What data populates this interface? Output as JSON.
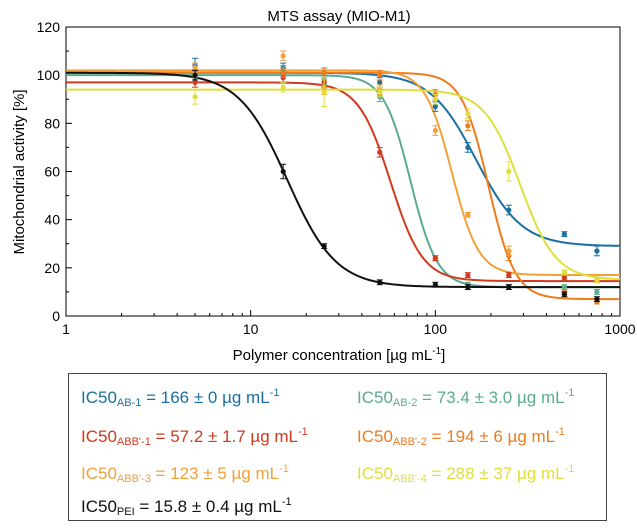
{
  "chart_data": {
    "type": "scatter",
    "title": "MTS assay (MIO-M1)",
    "xlabel": "Polymer concentration [µg mL",
    "xlabel_sup": "-1",
    "xlabel_end": "]",
    "ylabel": "Mitochondrial activity [%]",
    "xscale": "log",
    "xlim": [
      1,
      1000
    ],
    "ylim": [
      0,
      120
    ],
    "x_ticks": [
      1,
      10,
      100,
      1000
    ],
    "x_tick_labels": [
      "1",
      "10",
      "100",
      "1000"
    ],
    "y_ticks": [
      0,
      20,
      40,
      60,
      80,
      100,
      120
    ],
    "y_tick_labels": [
      "0",
      "20",
      "40",
      "60",
      "80",
      "100",
      "120"
    ],
    "grid": false,
    "legend_position": "below",
    "series": [
      {
        "name": "AB-1",
        "color": "#1a6fa3",
        "x": [
          5,
          15,
          25,
          50,
          100,
          150,
          250,
          500,
          750
        ],
        "y": [
          104,
          103,
          101,
          97,
          87,
          70,
          44,
          34,
          27
        ],
        "err": [
          3,
          2,
          2,
          2,
          2,
          2,
          2,
          1,
          2
        ],
        "fit": {
          "top": 101,
          "bottom": 29,
          "ic50": 166,
          "hill": 3.5
        }
      },
      {
        "name": "AB-2",
        "color": "#5aab8f",
        "x": [
          5,
          15,
          25,
          50,
          100,
          150,
          250,
          500,
          750
        ],
        "y": [
          99,
          102,
          98,
          91,
          24,
          13,
          12,
          12,
          10
        ],
        "err": [
          2,
          2,
          2,
          2,
          1,
          1,
          1,
          1,
          1
        ],
        "fit": {
          "top": 100,
          "bottom": 12,
          "ic50": 73.4,
          "hill": 6
        }
      },
      {
        "name": "ABB'-1",
        "color": "#d03a1e",
        "x": [
          5,
          15,
          25,
          50,
          100,
          150,
          250,
          500,
          750
        ],
        "y": [
          97,
          99,
          97,
          68,
          24,
          17,
          17,
          16,
          15
        ],
        "err": [
          2,
          2,
          2,
          2,
          1,
          1,
          1,
          1,
          1
        ],
        "fit": {
          "top": 97,
          "bottom": 14.5,
          "ic50": 57.2,
          "hill": 5
        }
      },
      {
        "name": "ABB'-2",
        "color": "#ef7b1c",
        "x": [
          5,
          15,
          25,
          50,
          100,
          150,
          250,
          500,
          750
        ],
        "y": [
          102,
          101,
          101,
          100,
          92,
          79,
          25,
          10,
          6
        ],
        "err": [
          2,
          2,
          2,
          2,
          2,
          2,
          2,
          1,
          1
        ],
        "fit": {
          "top": 101,
          "bottom": 7,
          "ic50": 194,
          "hill": 6
        }
      },
      {
        "name": "ABB'-3",
        "color": "#f2a13a",
        "x": [
          5,
          15,
          25,
          50,
          100,
          150,
          250,
          500,
          750
        ],
        "y": [
          103,
          108,
          95,
          94,
          77,
          42,
          27,
          18,
          15
        ],
        "err": [
          2,
          2,
          3,
          2,
          2,
          1,
          2,
          1,
          1
        ],
        "fit": {
          "top": 102,
          "bottom": 17,
          "ic50": 123,
          "hill": 6
        }
      },
      {
        "name": "ABB'-4",
        "color": "#e0df3a",
        "x": [
          5,
          15,
          25,
          50,
          100,
          150,
          250,
          500,
          750
        ],
        "y": [
          91,
          95,
          93,
          93,
          90,
          84,
          60,
          18,
          15
        ],
        "err": [
          3,
          2,
          6,
          2,
          2,
          2,
          4,
          1,
          1
        ],
        "fit": {
          "top": 94,
          "bottom": 15,
          "ic50": 288,
          "hill": 4.5
        }
      },
      {
        "name": "PEI",
        "color": "#111111",
        "x": [
          5,
          15,
          25,
          50,
          100,
          150,
          250,
          500,
          750
        ],
        "y": [
          100,
          60,
          29,
          14,
          13,
          12,
          12,
          9,
          7
        ],
        "err": [
          2,
          3,
          1,
          1,
          1,
          1,
          1,
          1,
          1
        ],
        "fit": {
          "top": 101,
          "bottom": 12,
          "ic50": 15.8,
          "hill": 3.3
        }
      }
    ]
  },
  "legend": [
    {
      "prefix": "IC50",
      "sub": "AB-1",
      "value": " = 166 ± 0 µg mL",
      "sup": "-1",
      "color": "#1a6fa3"
    },
    {
      "prefix": "IC50",
      "sub": "AB-2",
      "value": " = 73.4 ± 3.0 µg mL",
      "sup": "-1",
      "color": "#5aab8f"
    },
    {
      "prefix": "IC50",
      "sub": "ABB'-1",
      "value": " = 57.2 ± 1.7 µg mL",
      "sup": "-1",
      "color": "#d03a1e"
    },
    {
      "prefix": "IC50",
      "sub": "ABB'-2",
      "value": " = 194 ± 6 µg mL",
      "sup": "-1",
      "color": "#ef7b1c"
    },
    {
      "prefix": "IC50",
      "sub": "ABB'-3",
      "value": " = 123 ± 5 µg mL",
      "sup": "-1",
      "color": "#f2a13a"
    },
    {
      "prefix": "IC50",
      "sub": "ABB'-4",
      "value": " = 288 ± 37 µg mL",
      "sup": "-1",
      "color": "#e0df3a"
    },
    {
      "prefix": "IC50",
      "sub": "PEI",
      "value": " = 15.8 ± 0.4 µg mL",
      "sup": "-1",
      "color": "#111111"
    }
  ]
}
